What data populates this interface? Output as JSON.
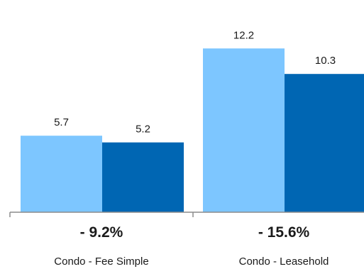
{
  "chart_data": {
    "type": "bar",
    "categories": [
      "Condo - Fee Simple",
      "Condo - Leasehold"
    ],
    "series": [
      {
        "values": [
          5.7,
          12.2
        ],
        "color": "#7dc6ff"
      },
      {
        "values": [
          5.2,
          10.3
        ],
        "color": "#0066b3"
      }
    ],
    "value_labels": [
      [
        "5.7",
        "12.2"
      ],
      [
        "5.2",
        "10.3"
      ]
    ],
    "change_labels": [
      "- 9.2%",
      "- 15.6%"
    ],
    "ylim": [
      0,
      13.8
    ],
    "grid": false,
    "axis_color": "#8c8c8c"
  }
}
